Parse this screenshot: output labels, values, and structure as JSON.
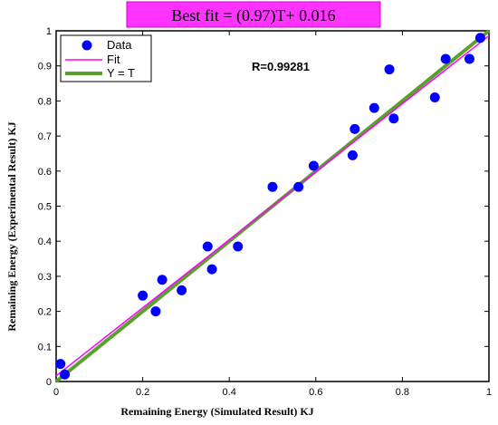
{
  "chart_data": {
    "type": "scatter",
    "title": "Best fit = (0.97)T+ 0.016",
    "xlabel": "Remaining Energy (Simulated Result) KJ",
    "ylabel": "Remaining Energy (Experimental Result) KJ",
    "annotation": "R=0.99281",
    "xlim": [
      0,
      1
    ],
    "ylim": [
      0,
      1
    ],
    "x_ticks": [
      0,
      0.2,
      0.4,
      0.6,
      0.8,
      1
    ],
    "x_tick_labels": [
      "0",
      "0.2",
      "0.4",
      "0.6",
      "0.8",
      "1"
    ],
    "y_ticks": [
      0,
      0.1,
      0.2,
      0.3,
      0.4,
      0.5,
      0.6,
      0.7,
      0.8,
      0.9,
      1
    ],
    "y_tick_labels": [
      "0",
      "0.1",
      "0.2",
      "0.3",
      "0.4",
      "0.5",
      "0.6",
      "0.7",
      "0.8",
      "0.9",
      "1"
    ],
    "grid": false,
    "legend_position": "top-left",
    "series": [
      {
        "name": "Data",
        "kind": "scatter",
        "color": "#0000ff",
        "x": [
          0.01,
          0.02,
          0.2,
          0.23,
          0.245,
          0.29,
          0.35,
          0.36,
          0.42,
          0.5,
          0.56,
          0.595,
          0.685,
          0.69,
          0.735,
          0.77,
          0.78,
          0.875,
          0.9,
          0.955,
          0.98
        ],
        "y": [
          0.05,
          0.02,
          0.245,
          0.2,
          0.29,
          0.26,
          0.385,
          0.32,
          0.385,
          0.555,
          0.555,
          0.615,
          0.645,
          0.72,
          0.78,
          0.89,
          0.75,
          0.81,
          0.92,
          0.92,
          0.98
        ]
      },
      {
        "name": "Fit",
        "kind": "line",
        "color": "#ff00ff",
        "slope": 0.97,
        "intercept": 0.016
      },
      {
        "name": "Y = T",
        "kind": "line",
        "color": "#5aa02c",
        "slope": 1,
        "intercept": 0
      }
    ]
  }
}
